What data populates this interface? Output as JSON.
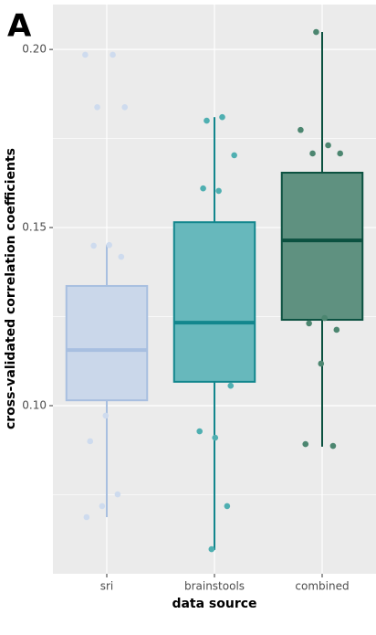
{
  "chart_data": {
    "type": "box",
    "panel_label": "A",
    "x_label": "data source",
    "y_label": "cross-validated correlation coefficients",
    "categories": [
      "sri",
      "brainstools",
      "combined"
    ],
    "fill_colors": [
      "#cad7ea",
      "#67b8bc",
      "#5f9180"
    ],
    "line_colors": [
      "#a8bfe0",
      "#12868d",
      "#0b5140"
    ],
    "point_colors": [
      "#cedbee",
      "#4fafb1",
      "#4c8670"
    ],
    "boxes": [
      {
        "min": 0.0687,
        "q1": 0.1015,
        "median": 0.1156,
        "q3": 0.1336,
        "max": 0.1451
      },
      {
        "min": 0.0595,
        "q1": 0.1067,
        "median": 0.1233,
        "q3": 0.1515,
        "max": 0.181
      },
      {
        "min": 0.0885,
        "q1": 0.1241,
        "median": 0.1464,
        "q3": 0.1654,
        "max": 0.2049
      }
    ],
    "points": [
      [
        0.1985,
        0.1985,
        0.1838,
        0.1838,
        0.1451,
        0.1449,
        0.1418,
        0.0972,
        0.09,
        0.0751,
        0.0718,
        0.0687
      ],
      [
        0.181,
        0.18,
        0.1703,
        0.1603,
        0.161,
        0.1056,
        0.091,
        0.0928,
        0.0718,
        0.0597
      ],
      [
        0.2049,
        0.1774,
        0.1731,
        0.1708,
        0.1708,
        0.1246,
        0.1231,
        0.1213,
        0.1118,
        0.0892,
        0.0887
      ]
    ],
    "ylim": [
      0.0528,
      0.2126
    ],
    "yticks": [
      {
        "value": 0.1,
        "label": "0.10"
      },
      {
        "value": 0.15,
        "label": "0.15"
      },
      {
        "value": 0.2,
        "label": "0.20"
      }
    ],
    "yminorticks": [
      0.075,
      0.125,
      0.175
    ],
    "grid": true
  }
}
